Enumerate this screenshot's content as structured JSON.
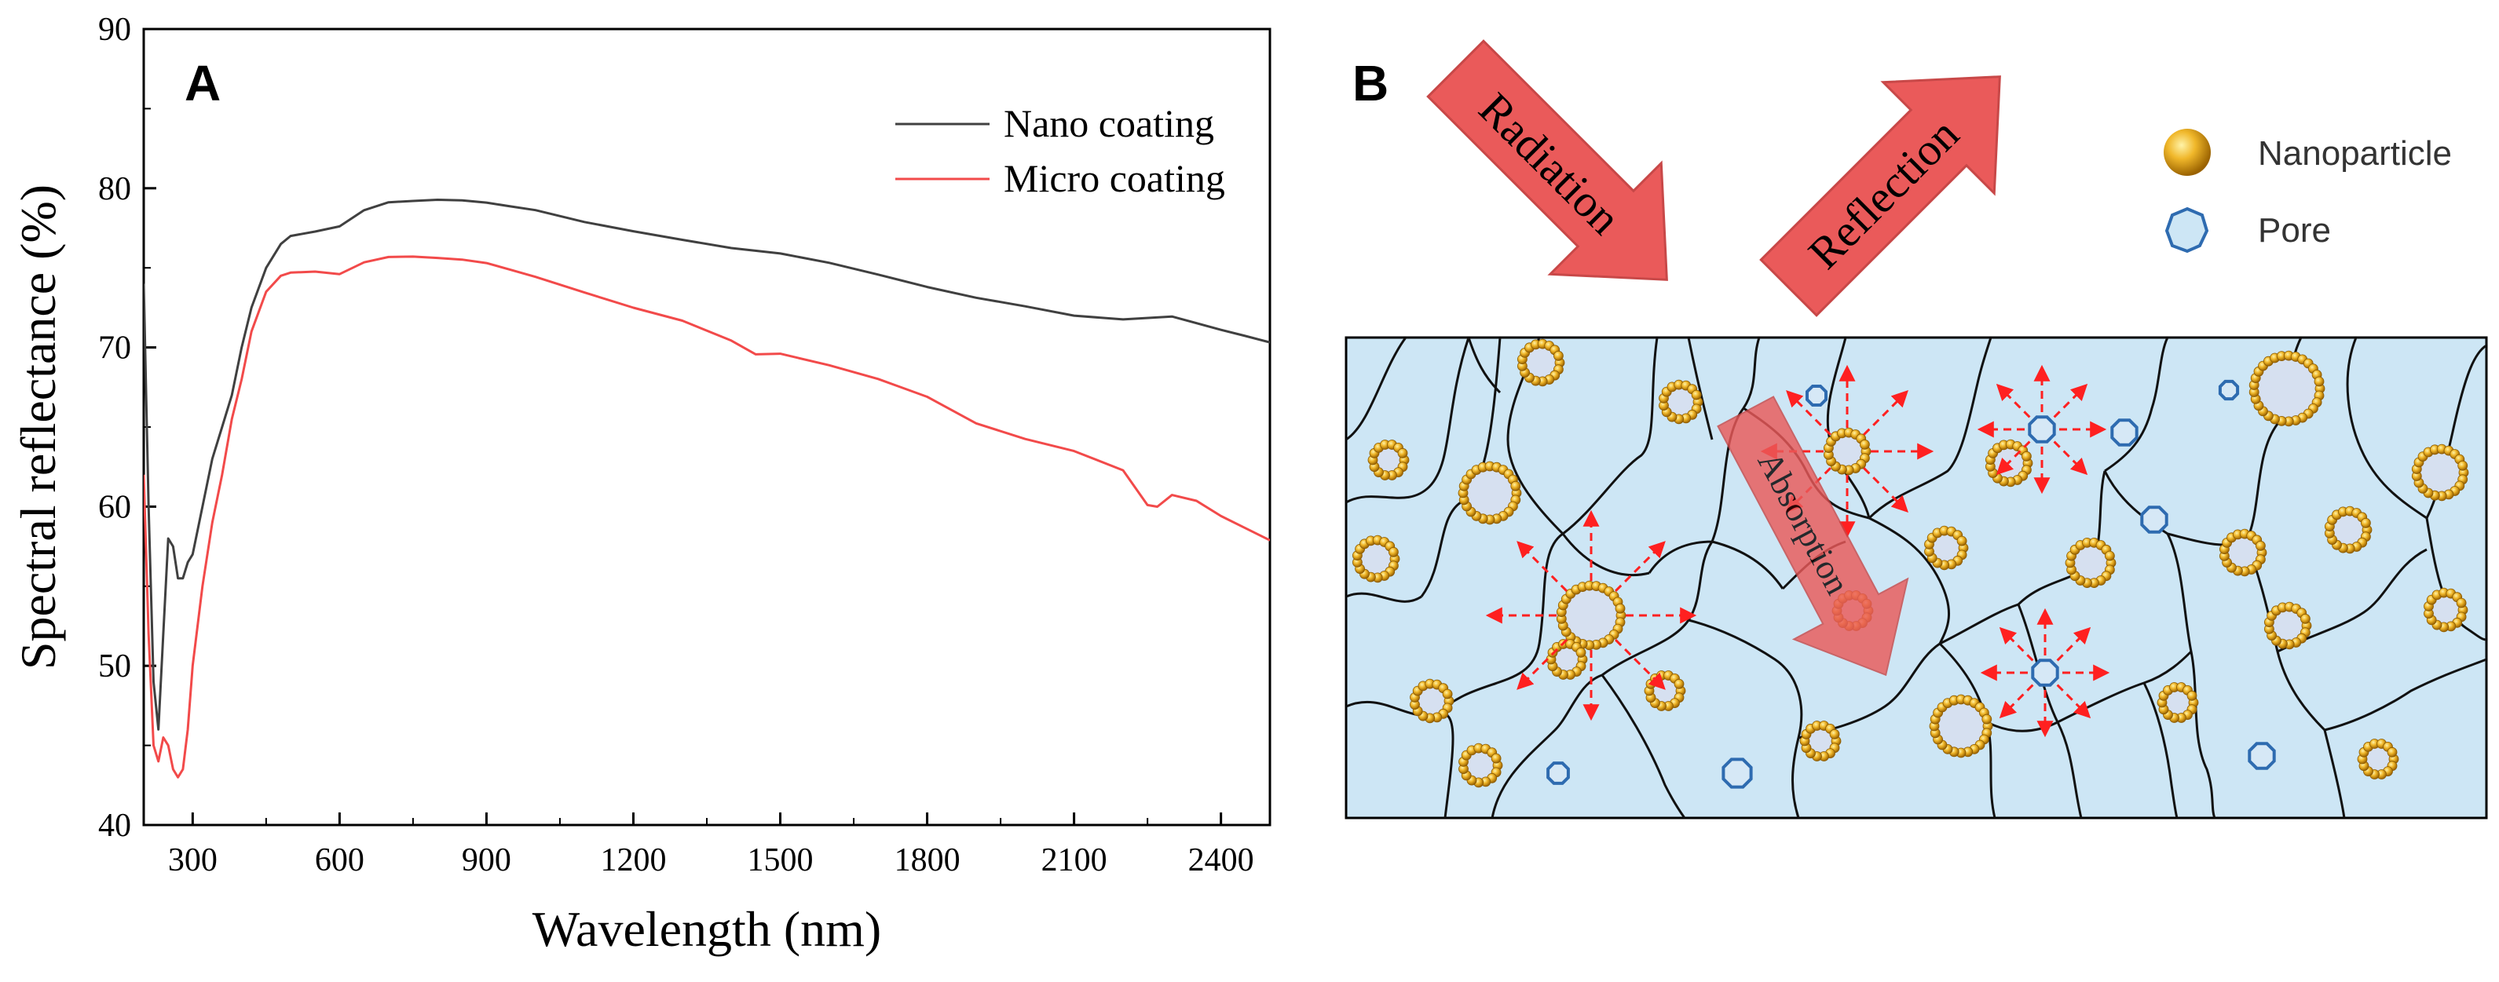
{
  "colors": {
    "nano": "#404040",
    "micro": "#f24a4a",
    "background": "#cde6f5",
    "arrow": "#ea5a5a",
    "arrow_edge": "#c84848",
    "particle": "#e0a21c",
    "pore": "#2e6bb0",
    "dashed": "#ff2020"
  },
  "panel_a": {
    "label": "A",
    "chart_data": {
      "type": "line",
      "xlabel": "Wavelength (nm)",
      "ylabel": "Spectral reflectance (%)",
      "xlim": [
        200,
        2500
      ],
      "ylim": [
        40,
        90
      ],
      "xticks": [
        300,
        600,
        900,
        1200,
        1500,
        1800,
        2100,
        2400
      ],
      "yticks": [
        40,
        50,
        60,
        70,
        80,
        90
      ],
      "legend_position": "top-right",
      "series": [
        {
          "name": "Nano coating",
          "color": "#404040",
          "x": [
            200,
            210,
            220,
            230,
            240,
            250,
            260,
            270,
            280,
            290,
            300,
            320,
            340,
            360,
            380,
            400,
            420,
            450,
            480,
            500,
            550,
            600,
            650,
            700,
            750,
            800,
            850,
            900,
            950,
            1000,
            1100,
            1200,
            1300,
            1400,
            1500,
            1600,
            1700,
            1800,
            1900,
            2000,
            2100,
            2200,
            2300,
            2400,
            2450,
            2500
          ],
          "y": [
            74,
            60,
            49,
            46,
            52,
            58,
            57.5,
            55.5,
            55.5,
            56.5,
            57,
            60,
            63,
            65,
            67,
            70,
            72.5,
            75,
            76.5,
            77,
            77.2,
            77.5,
            78.5,
            79,
            79.1,
            79.2,
            79.2,
            79.1,
            78.9,
            78.7,
            78,
            77.4,
            76.8,
            76.2,
            75.8,
            75.2,
            74.5,
            73.8,
            73.2,
            72.7,
            72.1,
            71.8,
            71.9,
            71,
            70.6,
            70.2
          ]
        },
        {
          "name": "Micro coating",
          "color": "#f24a4a",
          "x": [
            200,
            210,
            220,
            230,
            240,
            250,
            260,
            270,
            280,
            290,
            300,
            320,
            340,
            360,
            380,
            400,
            420,
            450,
            480,
            500,
            550,
            600,
            650,
            700,
            750,
            800,
            850,
            900,
            950,
            1000,
            1100,
            1200,
            1300,
            1400,
            1450,
            1500,
            1600,
            1700,
            1800,
            1900,
            2000,
            2100,
            2200,
            2250,
            2270,
            2300,
            2350,
            2400,
            2450,
            2500
          ],
          "y": [
            62,
            52,
            45,
            44,
            45.5,
            45,
            43.5,
            43,
            43.5,
            46,
            50,
            55,
            59,
            62,
            65.5,
            68,
            71,
            73.5,
            74.5,
            74.7,
            74.8,
            74.6,
            75.3,
            75.6,
            75.6,
            75.5,
            75.4,
            75.2,
            74.8,
            74.4,
            73.5,
            72.6,
            71.8,
            70.5,
            69.6,
            69.6,
            68.8,
            67.9,
            66.8,
            65.2,
            64.3,
            63.6,
            62.4,
            60.2,
            60.1,
            60.8,
            60.4,
            59.4,
            58.6,
            57.8
          ]
        }
      ]
    }
  },
  "panel_b": {
    "label": "B",
    "arrows": {
      "radiation": "Radiation",
      "reflection": "Reflection",
      "absorption": "Absorption"
    },
    "legend": [
      {
        "label": "Nanoparticle",
        "icon": "nanoparticle-icon"
      },
      {
        "label": "Pore",
        "icon": "pore-icon"
      }
    ]
  }
}
